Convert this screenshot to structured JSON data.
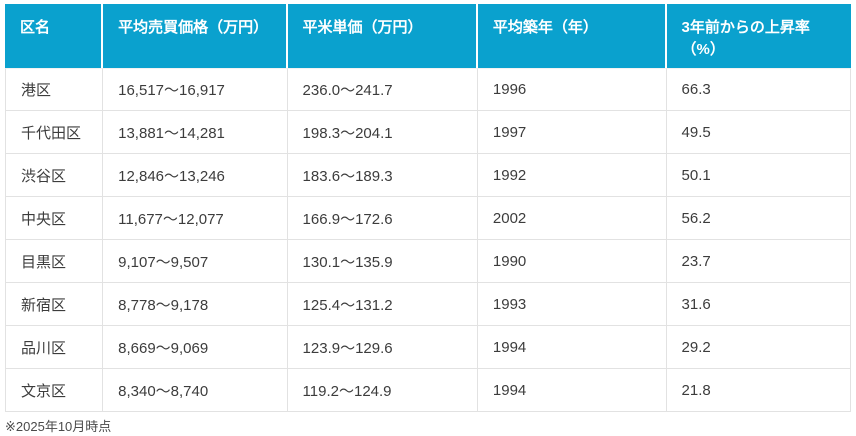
{
  "table": {
    "headers": [
      "区名",
      "平均売買価格（万円）",
      "平米単価（万円）",
      "平均築年（年）",
      "3年前からの上昇率\n（%）"
    ],
    "rows": [
      {
        "ward": "港区",
        "price": "16,517〜16,917",
        "unit_price": "236.0〜241.7",
        "built_year": "1996",
        "rise_rate": "66.3"
      },
      {
        "ward": "千代田区",
        "price": "13,881〜14,281",
        "unit_price": "198.3〜204.1",
        "built_year": "1997",
        "rise_rate": "49.5"
      },
      {
        "ward": "渋谷区",
        "price": "12,846〜13,246",
        "unit_price": "183.6〜189.3",
        "built_year": "1992",
        "rise_rate": "50.1"
      },
      {
        "ward": "中央区",
        "price": "11,677〜12,077",
        "unit_price": "166.9〜172.6",
        "built_year": "2002",
        "rise_rate": "56.2"
      },
      {
        "ward": "目黒区",
        "price": "9,107〜9,507",
        "unit_price": "130.1〜135.9",
        "built_year": "1990",
        "rise_rate": "23.7"
      },
      {
        "ward": "新宿区",
        "price": "8,778〜9,178",
        "unit_price": "125.4〜131.2",
        "built_year": "1993",
        "rise_rate": "31.6"
      },
      {
        "ward": "品川区",
        "price": "8,669〜9,069",
        "unit_price": "123.9〜129.6",
        "built_year": "1994",
        "rise_rate": "29.2"
      },
      {
        "ward": "文京区",
        "price": "8,340〜8,740",
        "unit_price": "119.2〜124.9",
        "built_year": "1994",
        "rise_rate": "21.8"
      }
    ]
  },
  "footer": {
    "note": "※2025年10月時点"
  },
  "colors": {
    "header_bg": "#0AA1CE",
    "header_text": "#FFFFFF",
    "body_text": "#3C3C3C",
    "border": "#E2E2E2"
  }
}
